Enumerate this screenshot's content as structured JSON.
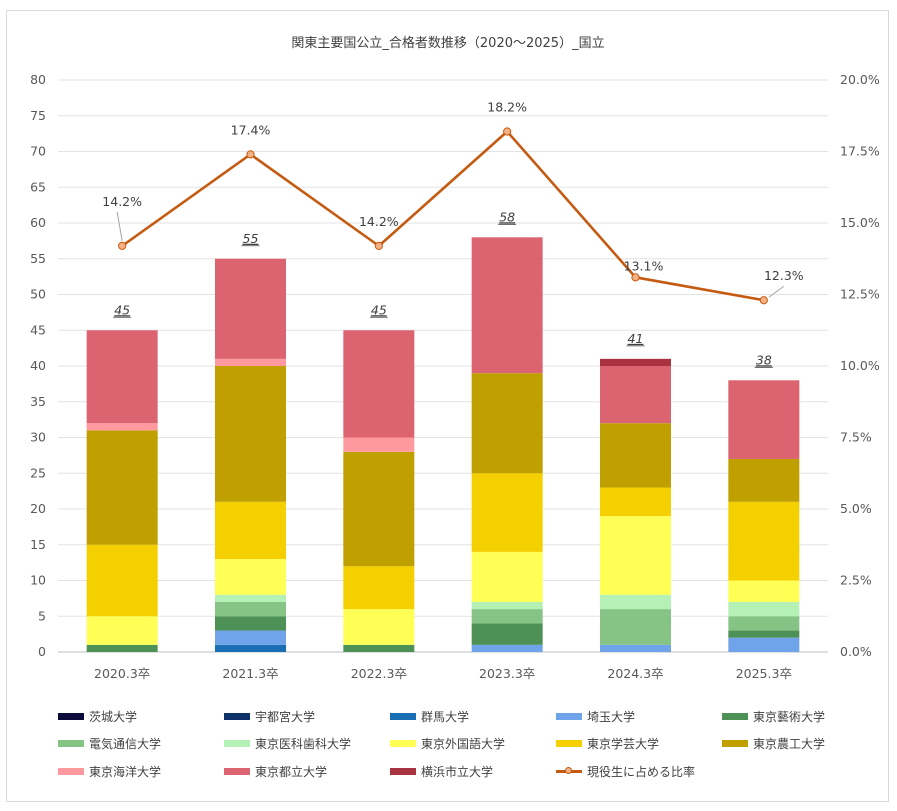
{
  "chart_data": {
    "type": "bar",
    "stacked": true,
    "title": "関東主要国公立_合格者数推移（2020～2025）_国立",
    "categories": [
      "2020.3卒",
      "2021.3卒",
      "2022.3卒",
      "2023.3卒",
      "2024.3卒",
      "2025.3卒"
    ],
    "ylim": [
      0,
      80
    ],
    "yticks": [
      "0",
      "5",
      "10",
      "15",
      "20",
      "25",
      "30",
      "35",
      "40",
      "45",
      "50",
      "55",
      "60",
      "65",
      "70",
      "75",
      "80"
    ],
    "y2lim": [
      0,
      20
    ],
    "y2ticks": [
      "0.0%",
      "2.5%",
      "5.0%",
      "7.5%",
      "10.0%",
      "12.5%",
      "15.0%",
      "17.5%",
      "20.0%"
    ],
    "grid": true,
    "legend_position": "bottom",
    "series": [
      {
        "name": "茨城大学",
        "color": "#0c0c3c",
        "values": [
          0,
          0,
          0,
          0,
          0,
          0
        ]
      },
      {
        "name": "宇都宮大学",
        "color": "#0d3269",
        "values": [
          0,
          0,
          0,
          0,
          0,
          0
        ]
      },
      {
        "name": "群馬大学",
        "color": "#1a6fb4",
        "values": [
          0,
          1,
          0,
          0,
          0,
          0
        ]
      },
      {
        "name": "埼玉大学",
        "color": "#6fa4ea",
        "values": [
          0,
          2,
          0,
          1,
          1,
          2
        ]
      },
      {
        "name": "東京藝術大学",
        "color": "#4e9157",
        "values": [
          1,
          2,
          1,
          3,
          0,
          1
        ]
      },
      {
        "name": "電気通信大学",
        "color": "#85c485",
        "values": [
          0,
          2,
          0,
          2,
          5,
          2
        ]
      },
      {
        "name": "東京医科歯科大学",
        "color": "#b5f0b5",
        "values": [
          0,
          1,
          0,
          1,
          2,
          2
        ]
      },
      {
        "name": "東京外国語大学",
        "color": "#ffff55",
        "values": [
          4,
          5,
          5,
          7,
          11,
          3
        ]
      },
      {
        "name": "東京学芸大学",
        "color": "#f5d000",
        "values": [
          10,
          8,
          6,
          11,
          4,
          11
        ]
      },
      {
        "name": "東京農工大学",
        "color": "#bfa000",
        "values": [
          16,
          19,
          16,
          14,
          9,
          6
        ]
      },
      {
        "name": "東京海洋大学",
        "color": "#ff99a0",
        "values": [
          1,
          1,
          2,
          0,
          0,
          0
        ]
      },
      {
        "name": "東京都立大学",
        "color": "#db6470",
        "values": [
          13,
          14,
          15,
          19,
          8,
          11
        ]
      },
      {
        "name": "横浜市立大学",
        "color": "#a83240",
        "values": [
          0,
          0,
          0,
          0,
          1,
          0
        ]
      }
    ],
    "totals": [
      "45",
      "55",
      "45",
      "58",
      "41",
      "38"
    ],
    "ratio_series": {
      "name": "現役生に占める比率",
      "color": "#c55a11",
      "marker_fill": "#f4b183",
      "values": [
        14.2,
        17.4,
        14.2,
        18.2,
        13.1,
        12.3
      ],
      "labels": [
        "14.2%",
        "17.4%",
        "14.2%",
        "18.2%",
        "13.1%",
        "12.3%"
      ]
    }
  }
}
